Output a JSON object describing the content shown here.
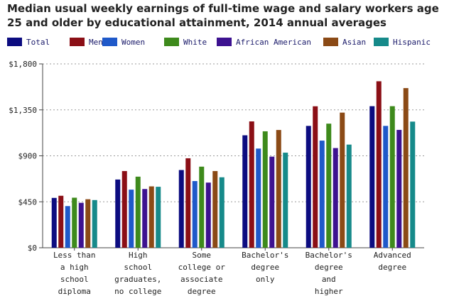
{
  "chart_data": {
    "type": "bar",
    "title": "Median usual weekly earnings of full-time wage and salary workers age 25 and older by educational attainment, 2014 annual averages",
    "xlabel": "",
    "ylabel": "",
    "ylim": [
      0,
      1800
    ],
    "yticks": [
      "$0",
      "$450",
      "$900",
      "$1,350",
      "$1,800"
    ],
    "ytick_values": [
      0,
      450,
      900,
      1350,
      1800
    ],
    "grid": true,
    "legend_position": "top",
    "categories": [
      [
        "Less than",
        "a high",
        "school",
        "diploma"
      ],
      [
        "High",
        "school",
        "graduates,",
        "no college"
      ],
      [
        "Some",
        "college or",
        "associate",
        "degree"
      ],
      [
        "Bachelor's",
        "degree",
        "only"
      ],
      [
        "Bachelor's",
        "degree",
        "and",
        "higher"
      ],
      [
        "Advanced",
        "degree"
      ]
    ],
    "series": [
      {
        "name": "Total",
        "color": "#0c0c80",
        "values": [
          488,
          668,
          761,
          1101,
          1193,
          1386
        ]
      },
      {
        "name": "Men",
        "color": "#8b0f16",
        "values": [
          509,
          751,
          876,
          1237,
          1385,
          1630
        ]
      },
      {
        "name": "Women",
        "color": "#1f59c9",
        "values": [
          408,
          569,
          653,
          971,
          1049,
          1193
        ]
      },
      {
        "name": "White",
        "color": "#3e8a1c",
        "values": [
          490,
          696,
          794,
          1140,
          1215,
          1386
        ]
      },
      {
        "name": "African American",
        "color": "#3d1290",
        "values": [
          440,
          575,
          638,
          892,
          976,
          1154
        ]
      },
      {
        "name": "Asian",
        "color": "#8b4a16",
        "values": [
          475,
          601,
          751,
          1153,
          1323,
          1563
        ]
      },
      {
        "name": "Hispanic",
        "color": "#168a8a",
        "values": [
          467,
          597,
          690,
          931,
          1010,
          1235
        ]
      }
    ]
  }
}
